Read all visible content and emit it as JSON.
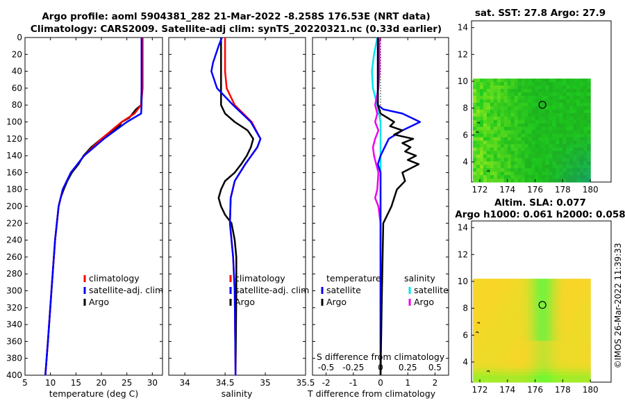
{
  "header": {
    "title_line1": "Argo profile: aoml 5904381_282 21-Mar-2022 -8.258S 176.53E (NRT data)",
    "title_line2": "Climatology: CARS2009. Satellite-adj clim: synTS_20220321.nc (0.33d earlier)"
  },
  "colors": {
    "climatology": "#ff0000",
    "satellite": "#0000ff",
    "argo": "#000000",
    "sal_sat": "#00e5ee",
    "sal_argo": "#ee00ee"
  },
  "chart_data": [
    {
      "id": "temperature",
      "type": "line",
      "xlabel": "temperature (deg C)",
      "ylabel": "",
      "xlim": [
        5,
        32
      ],
      "ylim": [
        400,
        0
      ],
      "xticks": [
        5,
        10,
        15,
        20,
        25,
        30
      ],
      "xtick_labels": [
        "5",
        "10",
        "15",
        "20",
        "25",
        "30"
      ],
      "yticks": [
        0,
        20,
        40,
        60,
        80,
        100,
        120,
        140,
        160,
        180,
        200,
        220,
        240,
        260,
        280,
        300,
        320,
        340,
        360,
        380,
        400
      ],
      "ytick_labels": [
        "0",
        "20",
        "40",
        "60",
        "80",
        "100",
        "120",
        "140",
        "160",
        "180",
        "200",
        "220",
        "240",
        "260",
        "280",
        "300",
        "320",
        "340",
        "360",
        "380",
        "400"
      ],
      "legend": [
        "climatology",
        "satellite-adj. clim",
        "Argo"
      ],
      "series": [
        {
          "name": "climatology",
          "depth": [
            0,
            60,
            80,
            90,
            100,
            120,
            140,
            160,
            180,
            200,
            240,
            300,
            360,
            400
          ],
          "values": [
            28.1,
            28.1,
            27.8,
            26.5,
            24.0,
            20.0,
            16.6,
            14.0,
            12.4,
            11.6,
            10.9,
            10.2,
            9.5,
            9.0
          ]
        },
        {
          "name": "satellite-adj. clim",
          "depth": [
            0,
            60,
            80,
            90,
            100,
            120,
            140,
            160,
            180,
            200,
            240,
            300,
            360,
            400
          ],
          "values": [
            27.9,
            27.9,
            27.9,
            27.8,
            25.0,
            20.5,
            16.6,
            14.0,
            12.4,
            11.6,
            10.9,
            10.2,
            9.5,
            9.0
          ]
        },
        {
          "name": "Argo",
          "depth": [
            0,
            60,
            80,
            85,
            95,
            100,
            105,
            110,
            120,
            130,
            140,
            150,
            160,
            170,
            180,
            190,
            200,
            240,
            300,
            360,
            400
          ],
          "values": [
            27.9,
            27.9,
            27.8,
            26.8,
            25.5,
            24.0,
            23.5,
            22.5,
            20.0,
            18.0,
            16.5,
            15.5,
            14.2,
            13.3,
            12.6,
            12.0,
            11.6,
            10.9,
            10.2,
            9.5,
            9.0
          ]
        }
      ]
    },
    {
      "id": "salinity",
      "type": "line",
      "xlabel": "salinity",
      "ylabel": "",
      "xlim": [
        33.8,
        35.5
      ],
      "ylim": [
        400,
        0
      ],
      "xticks": [
        34,
        34.5,
        35,
        35.5
      ],
      "xtick_labels": [
        "34",
        "34.5",
        "35",
        "35.5"
      ],
      "legend": [
        "climatology",
        "satellite-adj. clim",
        "Argo"
      ],
      "series": [
        {
          "name": "climatology",
          "depth": [
            0,
            40,
            60,
            80,
            100,
            120,
            130,
            150,
            170,
            190,
            220,
            260,
            300,
            400
          ],
          "values": [
            34.5,
            34.5,
            34.52,
            34.62,
            34.83,
            34.94,
            34.9,
            34.75,
            34.62,
            34.57,
            34.56,
            34.6,
            34.62,
            34.63
          ]
        },
        {
          "name": "satellite-adj. clim",
          "depth": [
            0,
            10,
            30,
            40,
            60,
            80,
            100,
            120,
            130,
            150,
            170,
            190,
            220,
            260,
            300,
            400
          ],
          "values": [
            34.46,
            34.42,
            34.35,
            34.33,
            34.4,
            34.6,
            34.82,
            34.94,
            34.9,
            34.75,
            34.62,
            34.57,
            34.56,
            34.6,
            34.62,
            34.63
          ]
        },
        {
          "name": "Argo",
          "depth": [
            0,
            80,
            90,
            100,
            110,
            120,
            130,
            140,
            150,
            160,
            170,
            180,
            190,
            200,
            210,
            220,
            230,
            240,
            260,
            300,
            400
          ],
          "values": [
            34.45,
            34.45,
            34.5,
            34.62,
            34.78,
            34.85,
            34.82,
            34.77,
            34.7,
            34.62,
            34.5,
            34.45,
            34.42,
            34.45,
            34.5,
            34.58,
            34.6,
            34.62,
            34.64,
            34.64,
            34.63
          ]
        }
      ]
    },
    {
      "id": "difference",
      "type": "line",
      "xlabel": "T difference from climatology",
      "x2label": "S difference from climatology",
      "xlim": [
        -2.5,
        2.5
      ],
      "ylim": [
        400,
        0
      ],
      "xticks": [
        -2,
        -1,
        0,
        1,
        2
      ],
      "xtick_labels": [
        "-2",
        "-1",
        "0",
        "1",
        "2"
      ],
      "x2ticks": [
        -0.5,
        -0.25,
        0,
        0.25,
        0.5
      ],
      "x2tick_labels": [
        "-0.5",
        "-0.25",
        "0",
        "0.25",
        "0.5"
      ],
      "legend_t": {
        "heading": "temperature",
        "items": [
          "satellite",
          "Argo"
        ]
      },
      "legend_s": {
        "heading": "salinity",
        "items": [
          "satellite",
          "Argo"
        ]
      },
      "series": [
        {
          "name": "T satellite",
          "depth": [
            0,
            80,
            85,
            90,
            100,
            110,
            120,
            140,
            150,
            160,
            200,
            300,
            400
          ],
          "values": [
            -0.1,
            -0.1,
            0.1,
            0.8,
            1.45,
            0.8,
            0.3,
            0.0,
            -0.1,
            0.0,
            0.0,
            0.0,
            0.0
          ]
        },
        {
          "name": "T Argo",
          "depth": [
            0,
            80,
            90,
            100,
            105,
            110,
            115,
            120,
            125,
            130,
            135,
            140,
            145,
            150,
            160,
            170,
            180,
            200,
            220,
            300,
            400
          ],
          "values": [
            -0.1,
            -0.1,
            0.0,
            0.5,
            0.35,
            0.8,
            0.5,
            1.2,
            0.8,
            1.1,
            0.9,
            1.3,
            1.0,
            1.4,
            0.8,
            0.9,
            0.6,
            0.4,
            0.1,
            0.05,
            0.0
          ]
        },
        {
          "name": "S satellite",
          "depth": [
            0,
            20,
            40,
            60,
            80,
            100,
            120,
            140,
            160,
            200,
            300,
            400
          ],
          "values": [
            -0.03,
            -0.06,
            -0.08,
            -0.07,
            -0.03,
            0.0,
            0.0,
            0.0,
            0.0,
            0.0,
            0.0,
            0.0
          ]
        },
        {
          "name": "S Argo",
          "depth": [
            0,
            40,
            60,
            80,
            90,
            100,
            110,
            120,
            130,
            140,
            160,
            180,
            190,
            200,
            220,
            300,
            400
          ],
          "values": [
            -0.01,
            -0.01,
            -0.02,
            -0.05,
            -0.03,
            -0.05,
            -0.02,
            -0.05,
            -0.07,
            -0.06,
            -0.02,
            -0.03,
            -0.05,
            -0.02,
            0.0,
            0.0,
            0.0
          ]
        }
      ]
    },
    {
      "id": "sst_map",
      "type": "heatmap",
      "title": "sat. SST: 27.8 Argo: 27.9",
      "xlim": [
        171.4,
        181.5
      ],
      "ylim": [
        2.5,
        14.5
      ],
      "xticks": [
        172,
        174,
        176,
        178,
        180
      ],
      "xtick_labels": [
        "172",
        "174",
        "176",
        "178",
        "180"
      ],
      "yticks": [
        4,
        6,
        8,
        10,
        12,
        14
      ],
      "ytick_labels": [
        "4",
        "6",
        "8",
        "10",
        "12",
        "14"
      ],
      "data_extent": {
        "lon": [
          171.5,
          180
        ],
        "lat": [
          2.5,
          10.2
        ]
      },
      "profile_location": {
        "lon": 176.53,
        "lat": 8.25
      }
    },
    {
      "id": "sla_map",
      "type": "heatmap",
      "title1": "Altim. SLA: 0.077",
      "title2": "Argo h1000: 0.061 h2000: 0.058",
      "xlim": [
        171.4,
        181.5
      ],
      "ylim": [
        2.5,
        14.5
      ],
      "xticks": [
        172,
        174,
        176,
        178,
        180
      ],
      "xtick_labels": [
        "172",
        "174",
        "176",
        "178",
        "180"
      ],
      "yticks": [
        4,
        6,
        8,
        10,
        12,
        14
      ],
      "ytick_labels": [
        "4",
        "6",
        "8",
        "10",
        "12",
        "14"
      ],
      "data_extent": {
        "lon": [
          171.5,
          180
        ],
        "lat": [
          2.5,
          10.2
        ]
      },
      "profile_location": {
        "lon": 176.53,
        "lat": 8.25
      }
    }
  ],
  "footer": {
    "credit": "©IMOS 26-Mar-2022 11:39:33"
  }
}
